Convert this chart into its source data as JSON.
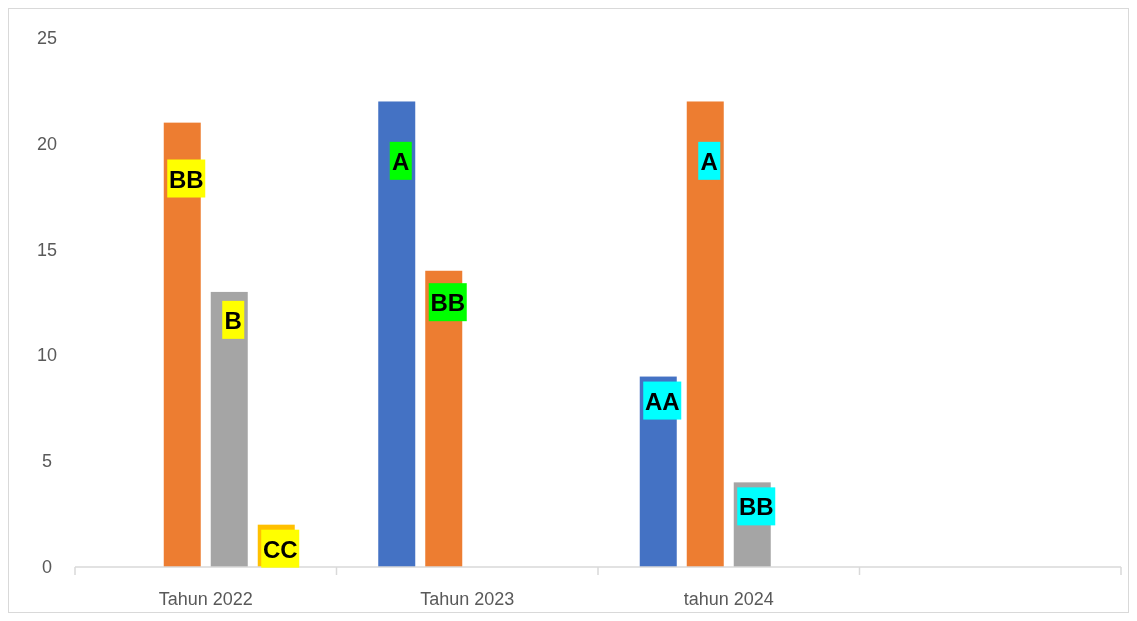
{
  "chart_data": {
    "type": "bar",
    "categories": [
      "Tahun 2022",
      "Tahun 2023",
      "tahun 2024",
      null
    ],
    "series": [
      {
        "color": "#4472c4",
        "values": [
          null,
          22,
          9,
          null
        ],
        "value_labels": [
          null,
          "A",
          "AA",
          null
        ]
      },
      {
        "color": "#ed7d31",
        "values": [
          21,
          14,
          22,
          null
        ],
        "value_labels": [
          "BB",
          "BB",
          "A",
          null
        ]
      },
      {
        "color": "#a5a5a5",
        "values": [
          13,
          null,
          4,
          null
        ],
        "value_labels": [
          "B",
          null,
          "BB",
          null
        ]
      },
      {
        "color": "#ffc000",
        "values": [
          2,
          null,
          null,
          null
        ],
        "value_labels": [
          "CC",
          null,
          null,
          null
        ]
      }
    ],
    "ylim": [
      0,
      25
    ],
    "yticks": [
      0,
      5,
      10,
      15,
      20,
      25
    ],
    "grid": false
  }
}
